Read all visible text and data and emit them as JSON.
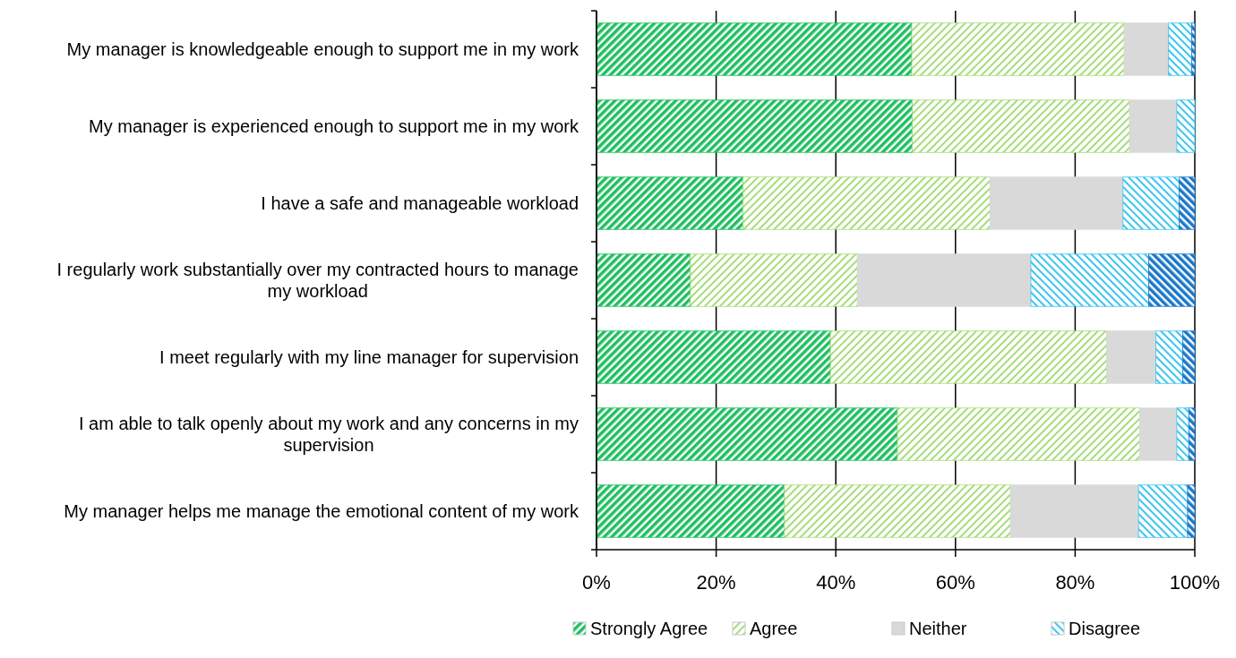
{
  "chart_data": {
    "type": "bar",
    "orientation": "horizontal",
    "stacked": true,
    "categories": [
      "My manager is knowledgeable enough to support me in my work",
      "My manager is experienced enough to support me in my work",
      "I have a safe and manageable workload",
      "I regularly work substantially over my contracted hours to manage my workload",
      "I meet regularly with my line manager for supervision",
      "I am able to talk openly about my work and any concerns in my supervision",
      "My manager helps me manage the emotional content of my work"
    ],
    "series": [
      {
        "name": "Strongly Agree",
        "color": "#1fbf5f",
        "values": [
          52.7,
          52.8,
          24.5,
          15.7,
          39.1,
          50.3,
          31.4
        ]
      },
      {
        "name": "Agree",
        "color": "#a6dc7a",
        "values": [
          35.5,
          36.3,
          41.3,
          27.9,
          46.2,
          40.5,
          37.8
        ]
      },
      {
        "name": "Neither",
        "color": "#d9d9d9",
        "values": [
          7.4,
          7.9,
          22.2,
          29.0,
          8.2,
          6.2,
          21.4
        ]
      },
      {
        "name": "Disagree",
        "color": "#3cc4f0",
        "values": [
          3.9,
          3.0,
          9.4,
          19.7,
          4.5,
          2.0,
          8.2
        ]
      },
      {
        "color": "#1a78c8",
        "values": [
          0.5,
          0,
          2.6,
          7.7,
          2.0,
          1.0,
          1.2
        ]
      }
    ],
    "xlim": [
      0,
      100
    ],
    "xticks": [
      {
        "value": 0,
        "label": "0%"
      },
      {
        "value": 20,
        "label": "20%"
      },
      {
        "value": 40,
        "label": "40%"
      },
      {
        "value": 60,
        "label": "60%"
      },
      {
        "value": 80,
        "label": "80%"
      },
      {
        "value": 100,
        "label": "100%"
      }
    ],
    "grid": "x",
    "legend": "bottom"
  }
}
